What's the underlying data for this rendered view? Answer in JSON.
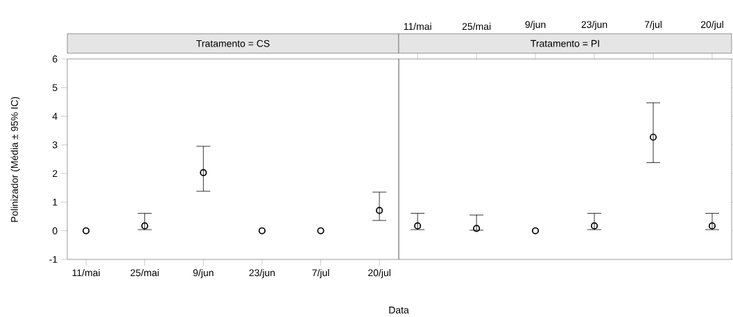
{
  "chart_data": [
    {
      "type": "scatter",
      "title": "Tratamento = CS",
      "xlabel": "Data",
      "ylabel": "Polinizador (Média ± 95% IC)",
      "categories": [
        "11/mai",
        "25/mai",
        "9/jun",
        "23/jun",
        "7/jul",
        "20/jul"
      ],
      "values": [
        0,
        0.17,
        2.03,
        0,
        0,
        0.71
      ],
      "errors": [
        null,
        [
          0.04,
          0.61
        ],
        [
          1.38,
          2.95
        ],
        null,
        null,
        [
          0.36,
          1.35
        ]
      ],
      "ylim": [
        -1,
        6
      ],
      "yticks": [
        -1,
        0,
        1,
        2,
        3,
        4,
        5,
        6
      ],
      "marker": "circle"
    },
    {
      "type": "scatter",
      "title": "Tratamento = PI",
      "categories": [
        "11/mai",
        "25/mai",
        "9/jun",
        "23/jun",
        "7/jul",
        "20/jul"
      ],
      "values": [
        0.17,
        0.08,
        0,
        0.17,
        3.27,
        0.17
      ],
      "errors": [
        [
          0.04,
          0.61
        ],
        [
          0.02,
          0.55
        ],
        null,
        [
          0.04,
          0.61
        ],
        [
          2.38,
          4.47
        ],
        [
          0.04,
          0.61
        ]
      ],
      "ylim": [
        -1,
        6
      ],
      "yticks": [
        -1,
        0,
        1,
        2,
        3,
        4,
        5,
        6
      ],
      "marker": "circle",
      "tick_labels": "x"
    }
  ]
}
